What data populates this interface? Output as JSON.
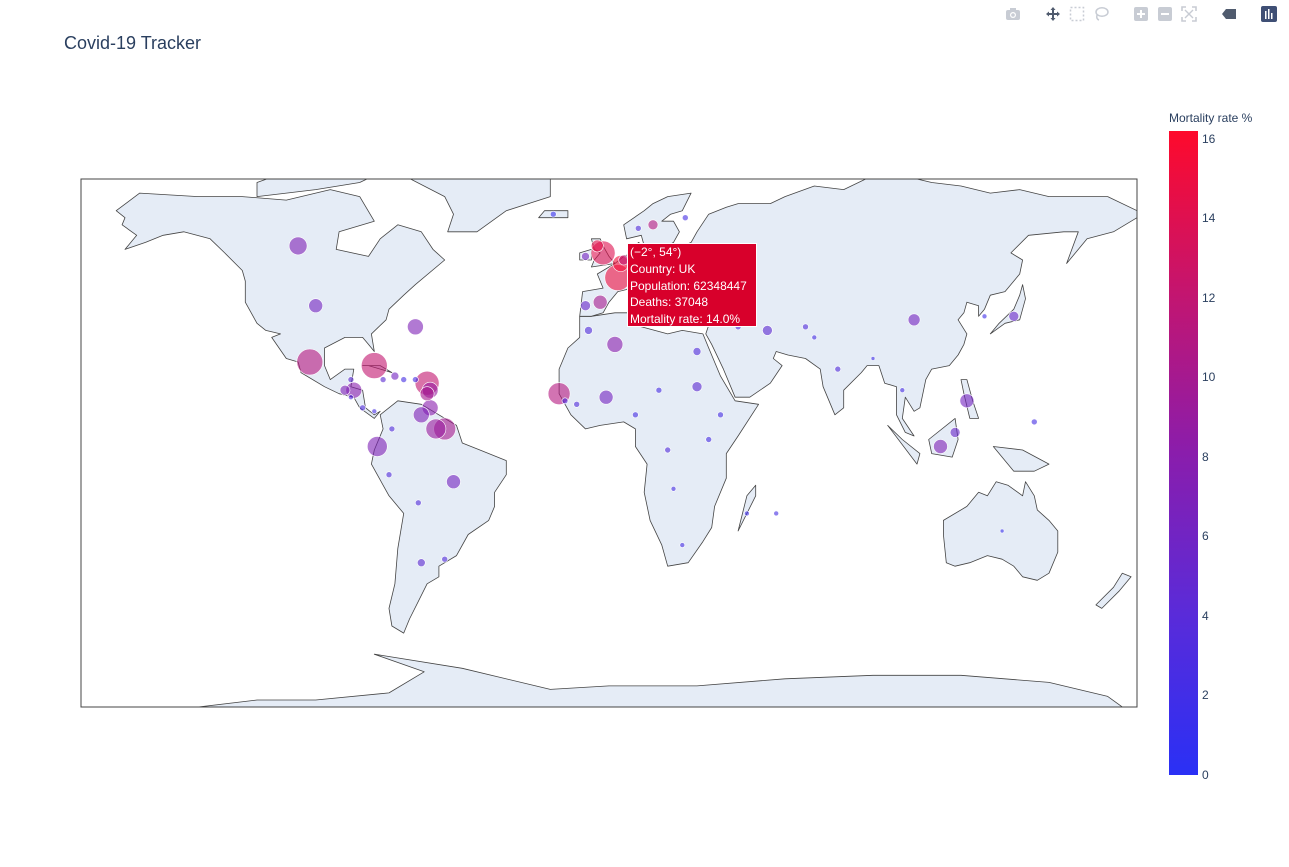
{
  "title": "Covid-19 Tracker",
  "modebar": {
    "buttons": [
      "camera-icon",
      "pan-icon",
      "box-select-icon",
      "lasso-icon",
      "zoom-in-icon",
      "zoom-out-icon",
      "reset-icon",
      "hover-icon",
      "plotly-logo"
    ]
  },
  "colorbar": {
    "title": "Mortality rate %",
    "min": 0,
    "max": 16.2,
    "ticks": [
      "0",
      "2",
      "4",
      "6",
      "8",
      "10",
      "12",
      "14",
      "16"
    ],
    "colors": {
      "low": "#2a30f5",
      "high": "#fe0a2c"
    }
  },
  "tooltip": {
    "coords": "(−2°, 54°)",
    "country": "Country: UK",
    "population": "Population: 62348447",
    "deaths": "Deaths: 37048",
    "mortality": "Mortality rate: 14.0%"
  },
  "map": {
    "projection": "equirectangular",
    "land_color": "#e5ecf6",
    "coastline_color": "#444444",
    "frame_color": "#444444"
  },
  "chart_data": {
    "type": "scatter",
    "fields": [
      "lon",
      "lat",
      "mortality_rate",
      "size"
    ],
    "points": [
      [
        -2,
        54,
        14.0,
        24
      ],
      [
        -4,
        56,
        14.5,
        12
      ],
      [
        3,
        47,
        15.0,
        26
      ],
      [
        -3,
        40,
        10,
        14
      ],
      [
        12,
        43,
        14.5,
        24
      ],
      [
        10,
        51,
        12.5,
        16
      ],
      [
        20,
        52,
        5,
        8
      ],
      [
        4,
        51,
        15.5,
        16
      ],
      [
        5,
        52,
        12,
        10
      ],
      [
        8,
        47,
        6,
        8
      ],
      [
        14,
        47,
        8,
        10
      ],
      [
        -8,
        53,
        6,
        8
      ],
      [
        -8,
        39,
        5,
        10
      ],
      [
        15,
        62,
        11,
        10
      ],
      [
        10,
        61,
        3,
        6
      ],
      [
        26,
        64,
        2,
        6
      ],
      [
        -19,
        65,
        1,
        6
      ],
      [
        24,
        56,
        2,
        6
      ],
      [
        26,
        46,
        6,
        8
      ],
      [
        22,
        39,
        5,
        6
      ],
      [
        35,
        39,
        3,
        6
      ],
      [
        44,
        40,
        2,
        5
      ],
      [
        38,
        55,
        1.5,
        8
      ],
      [
        -106,
        56,
        7,
        18
      ],
      [
        -100,
        39,
        6,
        14
      ],
      [
        -102,
        23,
        11,
        26
      ],
      [
        -80,
        22,
        12,
        26
      ],
      [
        -73,
        19,
        6,
        8
      ],
      [
        -70,
        18,
        2,
        6
      ],
      [
        -66,
        18,
        2,
        6
      ],
      [
        -62,
        17,
        12,
        24
      ],
      [
        -61,
        15,
        9,
        16
      ],
      [
        -61,
        10,
        8,
        16
      ],
      [
        -62,
        14,
        10,
        14
      ],
      [
        -64,
        8,
        7,
        16
      ],
      [
        -74,
        4,
        3,
        6
      ],
      [
        -79,
        -1,
        7,
        20
      ],
      [
        -66,
        33,
        7,
        16
      ],
      [
        -87,
        15,
        8,
        16
      ],
      [
        -90,
        15,
        7,
        10
      ],
      [
        -84,
        10,
        3,
        6
      ],
      [
        -80,
        9,
        2,
        5
      ],
      [
        -77,
        18,
        4,
        6
      ],
      [
        -88,
        18,
        4,
        6
      ],
      [
        -88,
        13,
        3,
        5
      ],
      [
        -59,
        4,
        9,
        20
      ],
      [
        -56,
        4,
        10,
        22
      ],
      [
        -53,
        -11,
        6,
        14
      ],
      [
        -75,
        -9,
        3,
        6
      ],
      [
        -65,
        -17,
        3,
        6
      ],
      [
        -64,
        -34,
        4,
        8
      ],
      [
        -56,
        -33,
        3,
        6
      ],
      [
        -17,
        14,
        11,
        22
      ],
      [
        -1,
        13,
        6,
        14
      ],
      [
        9,
        8,
        2,
        6
      ],
      [
        -15,
        12,
        3,
        6
      ],
      [
        -11,
        11,
        3,
        6
      ],
      [
        2,
        28,
        8,
        16
      ],
      [
        -7,
        32,
        3,
        8
      ],
      [
        9,
        34,
        3,
        6
      ],
      [
        17,
        15,
        2,
        6
      ],
      [
        30,
        26,
        3,
        8
      ],
      [
        30,
        16,
        4,
        10
      ],
      [
        38,
        8,
        2,
        6
      ],
      [
        34,
        1,
        2,
        6
      ],
      [
        20,
        -2,
        3,
        6
      ],
      [
        22,
        -13,
        2,
        5
      ],
      [
        47,
        -20,
        1.5,
        5
      ],
      [
        57,
        -20,
        2,
        5
      ],
      [
        25,
        -29,
        2,
        5
      ],
      [
        44,
        33,
        3,
        6
      ],
      [
        54,
        32,
        4,
        10
      ],
      [
        67,
        33,
        3,
        6
      ],
      [
        78,
        21,
        3,
        6
      ],
      [
        70,
        30,
        2,
        5
      ],
      [
        90,
        24,
        1.5,
        4
      ],
      [
        104,
        35,
        6,
        12
      ],
      [
        138,
        36,
        5,
        10
      ],
      [
        128,
        36,
        1.5,
        5
      ],
      [
        122,
        12,
        6,
        14
      ],
      [
        118,
        3,
        5,
        10
      ],
      [
        113,
        -1,
        7,
        14
      ],
      [
        145,
        6,
        2,
        6
      ],
      [
        134,
        -25,
        1,
        4
      ],
      [
        100,
        15,
        2,
        5
      ]
    ]
  }
}
